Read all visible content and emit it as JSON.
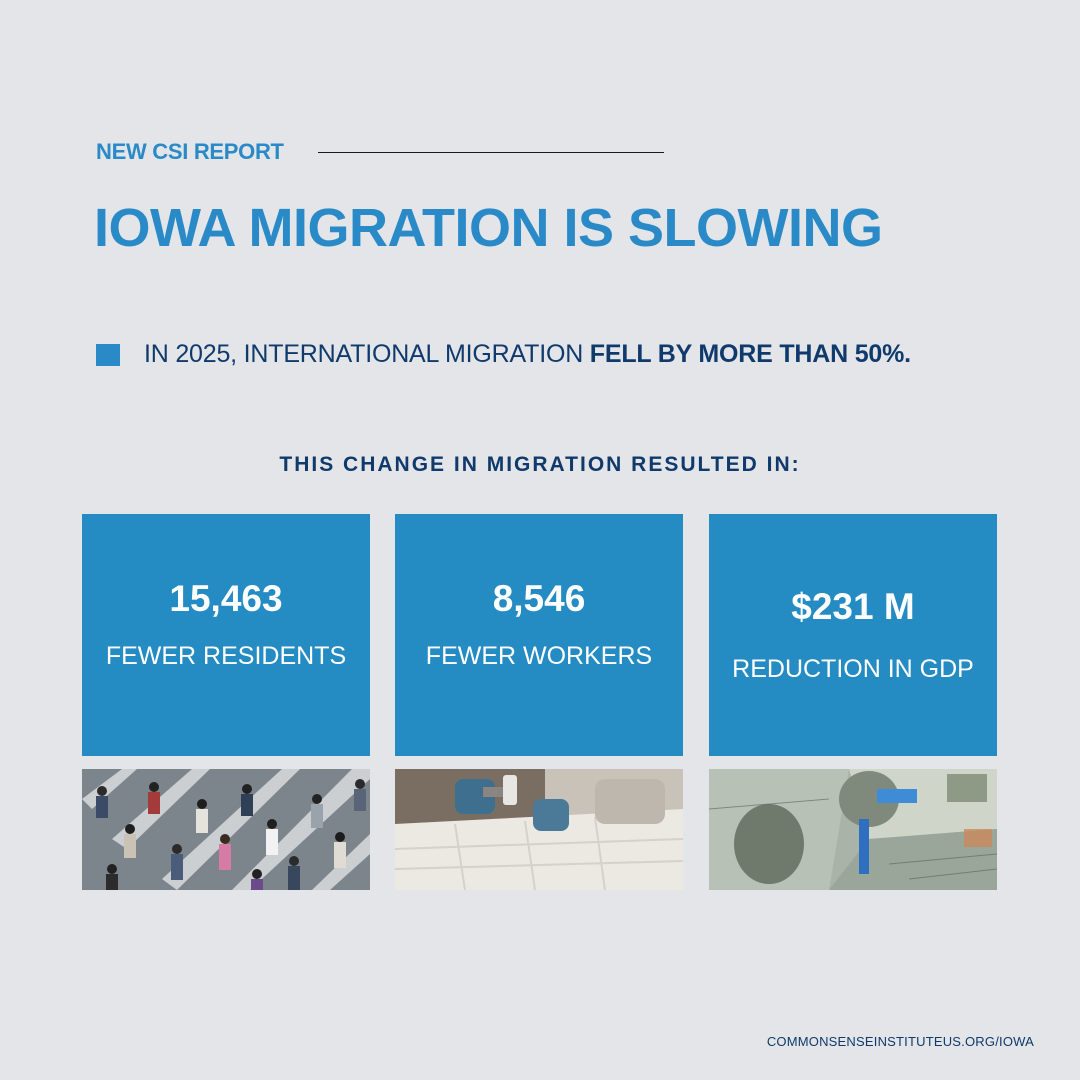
{
  "header": {
    "eyebrow": "NEW CSI REPORT",
    "headline": "IOWA MIGRATION IS SLOWING"
  },
  "bullet": {
    "text_regular": "IN 2025, INTERNATIONAL MIGRATION ",
    "text_bold": "FELL BY MORE THAN 50%."
  },
  "subhead": "THIS CHANGE IN MIGRATION RESULTED IN:",
  "stats": [
    {
      "value": "15,463",
      "label": "FEWER RESIDENTS"
    },
    {
      "value": "8,546",
      "label": "FEWER WORKERS"
    },
    {
      "value": "$231 M",
      "label": "REDUCTION IN GDP"
    }
  ],
  "photos": [
    {
      "icon": "crowd-crosswalk-photo"
    },
    {
      "icon": "worker-hammer-photo"
    },
    {
      "icon": "hundred-dollar-bills-photo"
    }
  ],
  "footer": {
    "url": "COMMONSENSEINSTITUTEUS.ORG/IOWA"
  },
  "colors": {
    "accent": "#2a8ac7",
    "card": "#248bc3",
    "navy": "#0f3a6b",
    "background": "#e3e5e8"
  }
}
